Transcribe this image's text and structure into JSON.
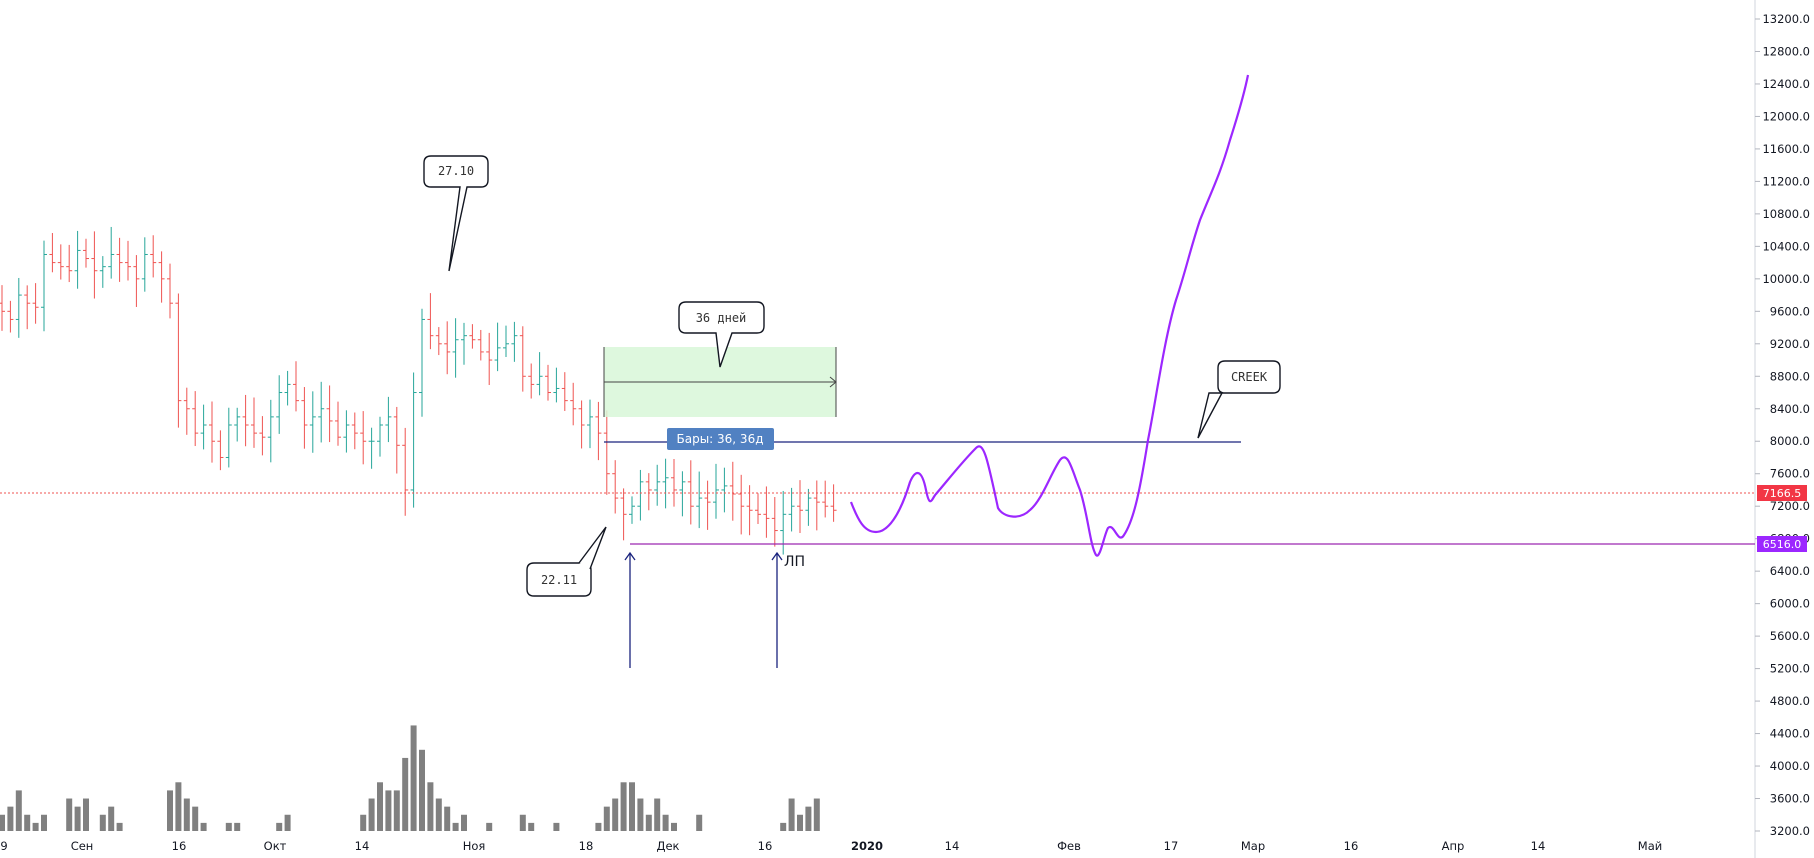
{
  "chart_data": {
    "type": "ohlc",
    "price_axis": {
      "ylim": [
        2800,
        13400
      ],
      "ticks": [
        "13200.0",
        "12800.0",
        "12400.0",
        "12000.0",
        "11600.0",
        "11200.0",
        "10800.0",
        "10400.0",
        "10000.0",
        "9600.0",
        "9200.0",
        "8800.0",
        "8400.0",
        "8000.0",
        "7600.0",
        "7200.0",
        "6800.0",
        "6400.0",
        "6000.0",
        "5600.0",
        "5200.0",
        "4800.0",
        "4400.0",
        "4000.0",
        "3600.0",
        "3200.0"
      ]
    },
    "time_axis": {
      "labels": [
        "9",
        "Сен",
        "16",
        "Окт",
        "14",
        "Ноя",
        "18",
        "Дек",
        "16",
        "2020",
        "14",
        "Фев",
        "17",
        "Мар",
        "16",
        "Апр",
        "14",
        "Май"
      ]
    },
    "ohlc_summary": {
      "start_date": "2019-08-29",
      "end_date": "2019-12-24",
      "bar_interval": "1d",
      "approx_close": [
        9600,
        9500,
        9800,
        9700,
        9650,
        10300,
        10200,
        10150,
        10100,
        10350,
        10250,
        10100,
        10150,
        10300,
        10200,
        10150,
        10000,
        10300,
        10200,
        10000,
        9700,
        8500,
        8400,
        8100,
        8200,
        8000,
        7800,
        8200,
        8300,
        8200,
        8100,
        8050,
        8300,
        8600,
        8700,
        8500,
        8200,
        8300,
        8400,
        8250,
        8050,
        8200,
        8100,
        8000,
        8000,
        8200,
        8300,
        7950,
        7400,
        8600,
        9500,
        9300,
        9200,
        9100,
        9250,
        9300,
        9250,
        9100,
        9000,
        9150,
        9200,
        9300,
        8800,
        8700,
        8800,
        8600,
        8650,
        8500,
        8400,
        8200,
        8300,
        8100,
        7600,
        7300,
        7100,
        7200,
        7500,
        7400,
        7500,
        7550,
        7400,
        7500,
        7200,
        7300,
        7250,
        7400,
        7450,
        7350,
        7200,
        7150,
        7100,
        7050,
        6900,
        7100,
        7200,
        7150,
        7300,
        7250,
        7200,
        7150
      ]
    },
    "volume": {
      "note": "volume histogram",
      "approx_values": [
        3400,
        3500,
        3700,
        3400,
        3300,
        3400,
        3200,
        3100,
        3600,
        3500,
        3600,
        3200,
        3400,
        3500,
        3300,
        3100,
        3200,
        3000,
        3200,
        3100,
        3700,
        3800,
        3600,
        3500,
        3300,
        3200,
        3100,
        3300,
        3300,
        3200,
        3100,
        3000,
        3200,
        3300,
        3400,
        3200,
        3100,
        3000,
        3200,
        3100,
        3000,
        3100,
        3200,
        3400,
        3600,
        3800,
        3700,
        3700,
        4100,
        4500,
        4200,
        3800,
        3600,
        3500,
        3300,
        3400,
        3200,
        3100,
        3300,
        3200,
        3100,
        3200,
        3400,
        3300,
        3200,
        3100,
        3300,
        3200,
        3100,
        3000,
        3200,
        3300,
        3500,
        3600,
        3800,
        3800,
        3600,
        3400,
        3600,
        3400,
        3300,
        3200,
        3100,
        3400,
        3200,
        3100,
        3000,
        3200,
        3100,
        3000,
        3100,
        3000,
        3200,
        3300,
        3600,
        3400,
        3500,
        3600,
        3200,
        3000
      ]
    },
    "current_price": {
      "label": "7166.5",
      "value": 7166.5,
      "color": "#f23645"
    },
    "level_price": {
      "label": "6516.0",
      "value": 6516.0,
      "color": "#9c27b0"
    },
    "annotations": {
      "callout_2710": "27.10",
      "callout_2211": "22.11",
      "callout_36d": "36 дней",
      "callout_creek": "CREEK",
      "bars_label": "Бары: 36, 36д",
      "lp_label": "ЛП"
    },
    "colors": {
      "up": "#26a69a",
      "down": "#ef5350",
      "volume": "#808080",
      "creek_line": "#1a237e",
      "projection": "#9c27ff",
      "range_box": "#ccf5cc"
    }
  }
}
